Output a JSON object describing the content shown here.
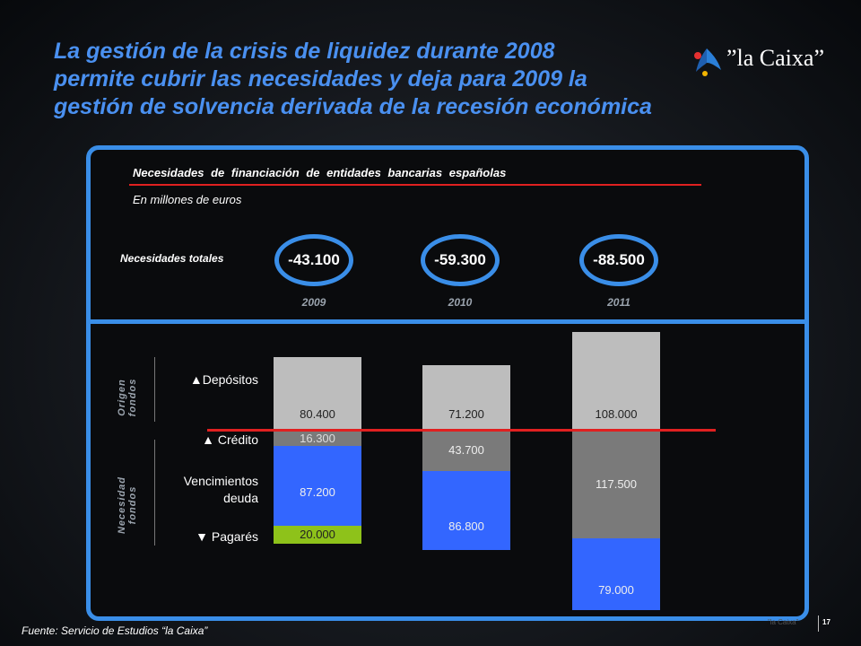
{
  "header": {
    "title_lines": [
      "La gestión de la crisis de liquidez durante 2008",
      "permite cubrir las necesidades y deja para 2009 la",
      "gestión de solvencia derivada de la recesión económica"
    ],
    "logo_text": "”la Caixa”"
  },
  "panel": {
    "subtitle": "Necesidades de financiación de entidades bancarias españolas",
    "units": "En millones de euros",
    "totals_label": "Necesidades totales"
  },
  "side_labels": {
    "origin": [
      "Origen",
      "fondos"
    ],
    "need": [
      "Necesidad",
      "fondos"
    ]
  },
  "row_labels": {
    "depositos": "▲Depósitos",
    "credito": "▲ Crédito",
    "vencimientos_1": "Vencimientos",
    "vencimientos_2": "deuda",
    "pagares": "▼ Pagarés"
  },
  "colors": {
    "depositos": "#bdbdbd",
    "credito": "#7a7a7a",
    "vencimientos": "#3366ff",
    "pagares": "#8ec21a",
    "accent": "#3a8ee8",
    "redline": "#e02020"
  },
  "chart_data": {
    "type": "bar",
    "categories": [
      "2009",
      "2010",
      "2011"
    ],
    "totals": [
      "-43.100",
      "-59.300",
      "-88.500"
    ],
    "series": [
      {
        "key": "depositos",
        "labels": [
          "80.400",
          "71.200",
          "108.000"
        ],
        "values": [
          80400,
          71200,
          108000
        ],
        "direction": "origin"
      },
      {
        "key": "credito",
        "labels": [
          "16.300",
          "43.700",
          "117.500"
        ],
        "values": [
          16300,
          43700,
          117500
        ],
        "direction": "need"
      },
      {
        "key": "vencimientos",
        "labels": [
          "87.200",
          "86.800",
          "79.000"
        ],
        "values": [
          87200,
          86800,
          79000
        ],
        "direction": "need"
      },
      {
        "key": "pagares",
        "labels": [
          "20.000",
          "",
          ""
        ],
        "values": [
          20000,
          0,
          0
        ],
        "direction": "need"
      }
    ]
  },
  "footer": {
    "source": "Fuente: Servicio de Estudios “la Caixa”",
    "page": "17",
    "watermark": "”la Caixa”"
  }
}
